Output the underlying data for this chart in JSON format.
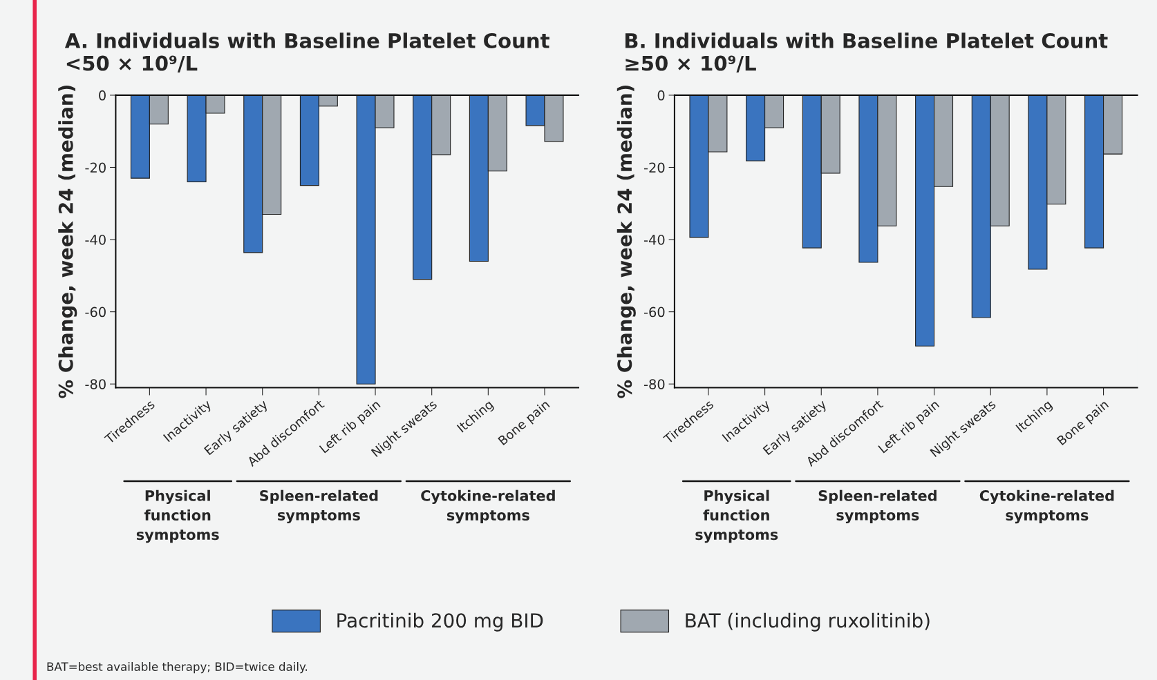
{
  "chart_data": [
    {
      "type": "bar",
      "title": "A. Individuals with Baseline Platelet Count\n<50 × 10⁹/L",
      "ylabel": "% Change, week 24 (median)",
      "categories": [
        "Tiredness",
        "Inactivity",
        "Early satiety",
        "Abd discomfort",
        "Left rib pain",
        "Night sweats",
        "Itching",
        "Bone pain"
      ],
      "series": [
        {
          "name": "Pacritinib 200 mg BID",
          "color": "#3a74bf",
          "values": [
            -23,
            -24,
            -43.6,
            -25,
            -80,
            -51,
            -46,
            -8.4
          ]
        },
        {
          "name": "BAT (including ruxolitinib)",
          "color": "#a0a8b0",
          "values": [
            -8,
            -5,
            -33,
            -3,
            -9,
            -16.5,
            -21,
            -12.8
          ]
        }
      ],
      "ylim": [
        -81,
        0
      ],
      "yticks": [
        0,
        -20,
        -40,
        -60,
        -80
      ],
      "legend": "bottom",
      "annotations": [
        "Physical\nfunction\nsymptoms",
        "Spleen-related\nsymptoms",
        "Cytokine-related\nsymptoms",
        "BAT=best available therapy; BID=twice daily."
      ]
    },
    {
      "type": "bar",
      "title": "B. Individuals with Baseline Platelet Count\n≥50 × 10⁹/L",
      "ylabel": "% Change, week 24 (median)",
      "categories": [
        "Tiredness",
        "Inactivity",
        "Early satiety",
        "Abd discomfort",
        "Left rib pain",
        "Night sweats",
        "Itching",
        "Bone pain"
      ],
      "series": [
        {
          "color": "#3a74bf",
          "values": [
            -39.4,
            -18.2,
            -42.3,
            -46.3,
            -69.5,
            -61.6,
            -48.2,
            -42.3
          ]
        },
        {
          "color": "#a0a8b0",
          "values": [
            -15.7,
            -9,
            -21.6,
            -36.2,
            -25.3,
            -36.2,
            -30.2,
            -16.3
          ]
        }
      ],
      "ylim": [
        -81,
        0
      ],
      "yticks": [
        0,
        -20,
        -40,
        -60,
        -80
      ],
      "annotations": [
        "Physical\nfunction\nsymptoms",
        "Spleen-related\nsymptoms",
        "Cytokine-related\nsymptoms"
      ]
    }
  ]
}
